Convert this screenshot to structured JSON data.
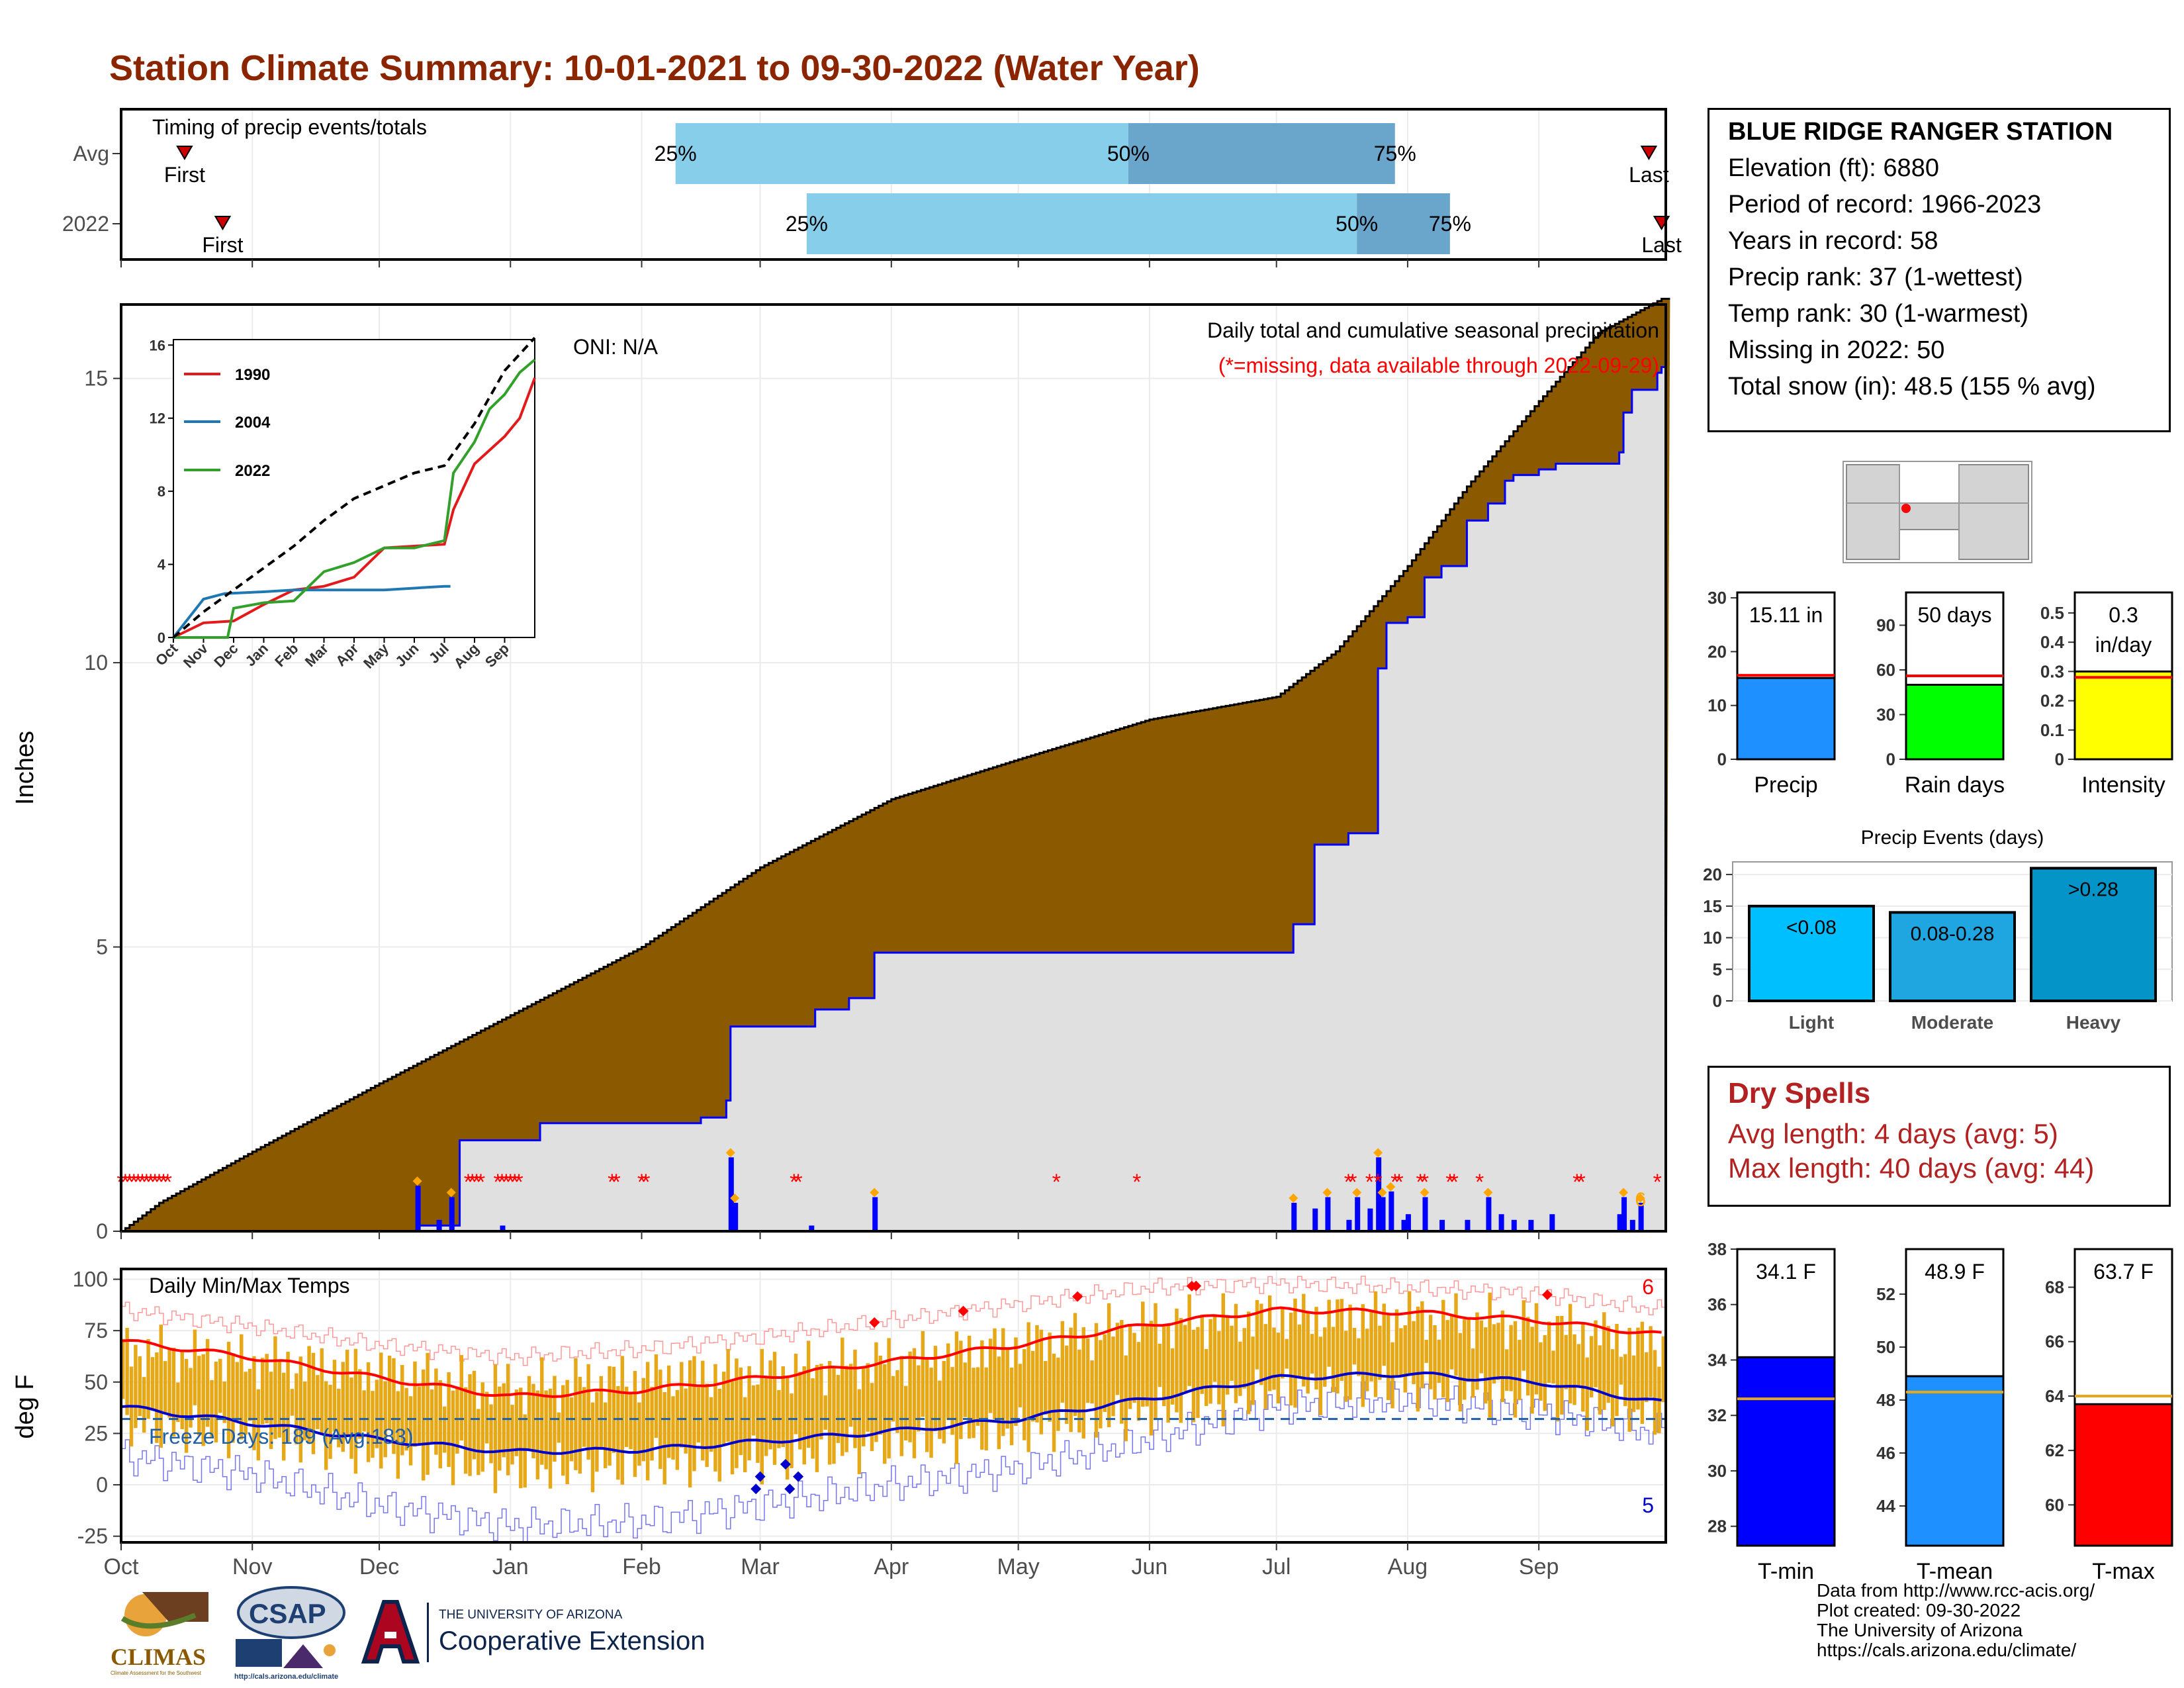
{
  "title": "Station Climate Summary: 10-01-2021 to 09-30-2022 (Water Year)",
  "colors": {
    "title": "#8b2500",
    "cum_fill": "#8b5a00",
    "precip_bar": "#0000ff",
    "timing_light": "#87ceeb",
    "timing_dark": "#6aa5cc",
    "temp_band": "#e6a817",
    "tmax_line": "#ff0000",
    "tmin_line": "#0000cc",
    "missing": "#ff0000",
    "freeze": "#1f5fa8"
  },
  "timing": {
    "title": "Timing of precip events/totals",
    "rows": [
      "Avg",
      "2022"
    ],
    "labels": {
      "first": "First",
      "last": "Last",
      "p25": "25%",
      "p50": "50%",
      "p75": "75%"
    },
    "avg": {
      "first": "2021-10-16",
      "p25": "2022-02-09",
      "p50": "2022-05-27",
      "p75": "2022-07-29",
      "last": "2022-09-27"
    },
    "y2022": {
      "first": "2021-10-25",
      "p25": "2022-03-12",
      "p50": "2022-07-20",
      "p75": "2022-08-11",
      "last": "2022-09-30"
    }
  },
  "chart_data": [
    {
      "type": "area",
      "name": "daily_and_cumulative_precip",
      "title": "Daily total and cumulative seasonal precipitation",
      "subtitle": "(*=missing, data available through 2022-09-29)",
      "oni": "ONI: N/A",
      "ylabel": "Inches",
      "ylim": [
        0,
        16.3
      ],
      "yticks": [
        0,
        5,
        10,
        15
      ],
      "xticks": [
        "Oct",
        "Nov",
        "Dec",
        "Jan",
        "Feb",
        "Mar",
        "Apr",
        "May",
        "Jun",
        "Jul",
        "Aug",
        "Sep"
      ],
      "avg_cumulative": {
        "dates": [
          "2021-10-01",
          "2021-10-10",
          "2021-11-01",
          "2021-12-01",
          "2022-01-01",
          "2022-02-01",
          "2022-03-01",
          "2022-04-01",
          "2022-05-01",
          "2022-06-01",
          "2022-07-01",
          "2022-07-15",
          "2022-08-01",
          "2022-08-15",
          "2022-09-01",
          "2022-09-15",
          "2022-09-30"
        ],
        "values": [
          0,
          0.5,
          1.4,
          2.6,
          3.8,
          5.0,
          6.4,
          7.6,
          8.3,
          9.0,
          9.4,
          10.2,
          11.7,
          13.1,
          14.6,
          15.8,
          16.4
        ]
      },
      "obs_cumulative": {
        "dates": [
          "2021-10-01",
          "2021-12-10",
          "2021-12-20",
          "2022-01-08",
          "2022-02-15",
          "2022-02-21",
          "2022-02-22",
          "2022-03-14",
          "2022-03-22",
          "2022-03-28",
          "2022-06-30",
          "2022-07-05",
          "2022-07-10",
          "2022-07-18",
          "2022-07-25",
          "2022-07-27",
          "2022-08-01",
          "2022-08-05",
          "2022-08-09",
          "2022-08-15",
          "2022-08-20",
          "2022-08-24",
          "2022-08-26",
          "2022-09-01",
          "2022-09-05",
          "2022-09-10",
          "2022-09-20",
          "2022-09-21",
          "2022-09-23",
          "2022-09-29",
          "2022-09-30"
        ],
        "values": [
          0,
          0.1,
          1.6,
          1.9,
          2.0,
          2.3,
          3.6,
          3.9,
          4.1,
          4.9,
          4.9,
          5.4,
          6.8,
          7.0,
          9.9,
          10.7,
          10.8,
          11.5,
          11.7,
          12.5,
          12.8,
          13.2,
          13.3,
          13.4,
          13.5,
          13.5,
          13.7,
          14.4,
          14.8,
          15.1,
          15.2
        ]
      },
      "daily_precip": {
        "dates": [
          "2021-12-10",
          "2021-12-15",
          "2021-12-18",
          "2021-12-30",
          "2022-02-22",
          "2022-02-23",
          "2022-03-13",
          "2022-03-28",
          "2022-07-05",
          "2022-07-10",
          "2022-07-13",
          "2022-07-18",
          "2022-07-20",
          "2022-07-23",
          "2022-07-25",
          "2022-07-26",
          "2022-07-28",
          "2022-07-31",
          "2022-08-01",
          "2022-08-05",
          "2022-08-09",
          "2022-08-15",
          "2022-08-20",
          "2022-08-23",
          "2022-08-26",
          "2022-08-30",
          "2022-09-04",
          "2022-09-20",
          "2022-09-21",
          "2022-09-23",
          "2022-09-25"
        ],
        "values": [
          0.8,
          0.2,
          0.6,
          0.1,
          1.3,
          0.5,
          0.1,
          0.6,
          0.5,
          0.4,
          0.6,
          0.2,
          0.6,
          0.4,
          1.3,
          0.6,
          0.7,
          0.2,
          0.3,
          0.6,
          0.2,
          0.2,
          0.6,
          0.3,
          0.2,
          0.2,
          0.3,
          0.3,
          0.6,
          0.2,
          0.5
        ]
      },
      "missing_dates": [
        "2021-10-01",
        "2021-10-02",
        "2021-10-03",
        "2021-10-04",
        "2021-10-05",
        "2021-10-06",
        "2021-10-07",
        "2021-10-08",
        "2021-10-09",
        "2021-10-10",
        "2021-10-11",
        "2021-10-12",
        "2021-12-22",
        "2021-12-23",
        "2021-12-24",
        "2021-12-25",
        "2021-12-29",
        "2021-12-30",
        "2021-12-31",
        "2022-01-01",
        "2022-01-02",
        "2022-01-03",
        "2022-01-25",
        "2022-01-26",
        "2022-02-01",
        "2022-02-02",
        "2022-03-09",
        "2022-03-10",
        "2022-05-10",
        "2022-05-29",
        "2022-07-18",
        "2022-07-19",
        "2022-07-23",
        "2022-07-25",
        "2022-07-29",
        "2022-07-30",
        "2022-08-04",
        "2022-08-05",
        "2022-08-11",
        "2022-08-12",
        "2022-08-18",
        "2022-09-10",
        "2022-09-11",
        "2022-09-29"
      ],
      "last_label": "6"
    },
    {
      "type": "line",
      "name": "daily_temps",
      "title": "Daily Min/Max Temps",
      "ylabel": "deg F",
      "ylim": [
        -28,
        105
      ],
      "yticks": [
        -25,
        0,
        25,
        50,
        75,
        100
      ],
      "xticks": [
        "Oct",
        "Nov",
        "Dec",
        "Jan",
        "Feb",
        "Mar",
        "Apr",
        "May",
        "Jun",
        "Jul",
        "Aug",
        "Sep"
      ],
      "freeze_line": 32,
      "freeze_label": "Freeze Days: 189 (Avg:183)",
      "tmax_avg": {
        "dates": [
          "2021-10-01",
          "2021-11-01",
          "2021-12-01",
          "2022-01-01",
          "2022-02-01",
          "2022-03-01",
          "2022-04-01",
          "2022-05-01",
          "2022-06-01",
          "2022-07-01",
          "2022-08-01",
          "2022-09-01",
          "2022-09-30"
        ],
        "values": [
          70,
          62,
          52,
          43,
          46,
          52,
          60,
          68,
          78,
          85,
          84,
          80,
          73
        ]
      },
      "tmin_avg": {
        "dates": [
          "2021-10-01",
          "2021-11-01",
          "2021-12-01",
          "2022-01-01",
          "2022-02-01",
          "2022-03-01",
          "2022-04-01",
          "2022-05-01",
          "2022-06-01",
          "2022-07-01",
          "2022-08-01",
          "2022-09-01",
          "2022-09-30"
        ],
        "values": [
          38,
          30,
          22,
          16,
          17,
          21,
          26,
          32,
          42,
          52,
          54,
          50,
          40
        ]
      },
      "tmax_record": {
        "dates": [
          "2021-10-01",
          "2021-11-01",
          "2021-12-01",
          "2022-01-01",
          "2022-02-01",
          "2022-03-01",
          "2022-04-01",
          "2022-05-01",
          "2022-06-01",
          "2022-07-01",
          "2022-08-01",
          "2022-09-01",
          "2022-09-30"
        ],
        "values": [
          85,
          77,
          68,
          62,
          66,
          72,
          80,
          88,
          96,
          98,
          96,
          93,
          85
        ]
      },
      "tmin_record": {
        "dates": [
          "2021-10-01",
          "2021-11-01",
          "2021-12-01",
          "2022-01-01",
          "2022-02-01",
          "2022-03-01",
          "2022-04-01",
          "2022-05-01",
          "2022-06-01",
          "2022-07-01",
          "2022-08-01",
          "2022-09-01",
          "2022-09-30"
        ],
        "values": [
          14,
          5,
          -10,
          -20,
          -18,
          -10,
          0,
          8,
          22,
          38,
          42,
          35,
          25
        ]
      },
      "obs_band": {
        "dates": [
          "2021-10-01",
          "2021-11-01",
          "2021-12-01",
          "2022-01-01",
          "2022-02-01",
          "2022-03-01",
          "2022-04-01",
          "2022-05-01",
          "2022-06-01",
          "2022-07-01",
          "2022-08-01",
          "2022-09-01",
          "2022-09-30"
        ],
        "tmax": [
          66,
          60,
          55,
          47,
          52,
          55,
          60,
          68,
          78,
          82,
          82,
          78,
          68
        ],
        "tmin": [
          30,
          23,
          15,
          7,
          10,
          12,
          20,
          26,
          35,
          46,
          48,
          42,
          33
        ]
      },
      "record_max_dates": [
        "2022-03-28",
        "2022-04-18",
        "2022-05-15",
        "2022-06-11",
        "2022-06-12",
        "2022-09-03"
      ],
      "record_min_dates": [
        "2022-02-28",
        "2022-03-01",
        "2022-03-07",
        "2022-03-08",
        "2022-03-10"
      ],
      "n_record_max": "6",
      "n_record_min": "5"
    },
    {
      "type": "line",
      "name": "inset_cumulative_years",
      "yticks": [
        0,
        4,
        8,
        12,
        16
      ],
      "ylim": [
        0,
        16.3
      ],
      "xticks": [
        "Oct",
        "Nov",
        "Dec",
        "Jan",
        "Feb",
        "Mar",
        "Apr",
        "May",
        "Jun",
        "Jul",
        "Aug",
        "Sep"
      ],
      "series": [
        {
          "name": "1990",
          "color": "#e31a1c",
          "months": [
            0,
            1,
            2,
            3,
            4,
            5,
            6,
            7,
            8,
            9,
            9.3,
            10,
            11,
            11.5,
            12
          ],
          "values": [
            0,
            0.8,
            0.9,
            1.8,
            2.6,
            2.8,
            3.3,
            4.9,
            5.0,
            5.1,
            7.0,
            9.5,
            11.0,
            12.0,
            14.2
          ]
        },
        {
          "name": "2004",
          "color": "#1f78b4",
          "months": [
            0,
            1,
            1.7,
            3,
            4,
            5,
            6,
            7,
            8,
            9,
            9.2
          ],
          "values": [
            0,
            2.1,
            2.4,
            2.5,
            2.6,
            2.6,
            2.6,
            2.6,
            2.7,
            2.8,
            2.8
          ]
        },
        {
          "name": "2022",
          "color": "#33a02c",
          "months": [
            0,
            1.8,
            2,
            3,
            4,
            5,
            6,
            7,
            8,
            9,
            9.3,
            10,
            10.5,
            11,
            11.5,
            12
          ],
          "values": [
            0,
            0,
            1.6,
            1.9,
            2.0,
            3.6,
            4.1,
            4.9,
            4.9,
            5.3,
            9.0,
            10.7,
            12.5,
            13.3,
            14.5,
            15.2
          ]
        },
        {
          "name": "avg",
          "color": "#000000",
          "months": [
            0,
            1,
            2,
            3,
            4,
            5,
            6,
            7,
            8,
            9,
            10,
            11,
            12
          ],
          "values": [
            0,
            1.4,
            2.6,
            3.8,
            5.0,
            6.4,
            7.6,
            8.3,
            9.0,
            9.4,
            11.7,
            14.6,
            16.4
          ]
        }
      ]
    },
    {
      "type": "bar",
      "name": "precip_total",
      "categories": [
        "Precip"
      ],
      "values": [
        15.11
      ],
      "avg": 15.6,
      "ylim": [
        0,
        31
      ],
      "yticks": [
        0,
        10,
        20,
        30
      ],
      "label": "15.11 in",
      "color": "#1e90ff"
    },
    {
      "type": "bar",
      "name": "rain_days",
      "categories": [
        "Rain days"
      ],
      "values": [
        50
      ],
      "avg": 56,
      "ylim": [
        0,
        112
      ],
      "yticks": [
        0,
        30,
        60,
        90
      ],
      "label": "50 days",
      "color": "#00ff00"
    },
    {
      "type": "bar",
      "name": "intensity",
      "categories": [
        "Intensity"
      ],
      "values": [
        0.3
      ],
      "avg": 0.28,
      "ylim": [
        0,
        0.57
      ],
      "yticks": [
        0,
        0.1,
        0.2,
        0.3,
        0.4,
        0.5
      ],
      "label": "0.3 in/day",
      "color": "#ffff00"
    },
    {
      "type": "bar",
      "name": "precip_events",
      "title": "Precip Events (days)",
      "categories": [
        "Light",
        "Moderate",
        "Heavy"
      ],
      "values": [
        15,
        14,
        21
      ],
      "labels": [
        "<0.08",
        "0.08-0.28",
        ">0.28"
      ],
      "colors": [
        "#00bfff",
        "#1fa5e0",
        "#0494c7"
      ],
      "ylim": [
        0,
        22
      ],
      "yticks": [
        0,
        5,
        10,
        15,
        20
      ]
    },
    {
      "type": "bar",
      "name": "tmin_summary",
      "categories": [
        "T-min"
      ],
      "values": [
        34.1
      ],
      "avg": 32.6,
      "ylim": [
        27.3,
        38
      ],
      "yticks": [
        28,
        30,
        32,
        34,
        36,
        38
      ],
      "label": "34.1 F",
      "color": "#0000ff"
    },
    {
      "type": "bar",
      "name": "tmean_summary",
      "categories": [
        "T-mean"
      ],
      "values": [
        48.9
      ],
      "avg": 48.3,
      "ylim": [
        42.5,
        53.7
      ],
      "yticks": [
        44,
        46,
        48,
        50,
        52
      ],
      "label": "48.9 F",
      "color": "#1e90ff"
    },
    {
      "type": "bar",
      "name": "tmax_summary",
      "categories": [
        "T-max"
      ],
      "values": [
        63.7
      ],
      "avg": 64.0,
      "ylim": [
        58.5,
        69.4
      ],
      "yticks": [
        60,
        62,
        64,
        66,
        68
      ],
      "label": "63.7 F",
      "color": "#ff0000"
    }
  ],
  "station": {
    "name": "BLUE RIDGE RANGER STATION",
    "elevation": "Elevation (ft): 6880",
    "period": "Period of record: 1966-2023",
    "years": "Years in record: 58",
    "precip_rank": "Precip rank: 37 (1-wettest)",
    "temp_rank": "Temp rank: 30 (1-warmest)",
    "missing": "Missing in 2022: 50",
    "snow": "Total snow (in): 48.5 (155 % avg)"
  },
  "dry_spells": {
    "title": "Dry Spells",
    "avg_length": "Avg length: 4 days (avg: 5)",
    "max_length": "Max length: 40 days (avg: 44)"
  },
  "credits": {
    "line1": "Data from http://www.rcc-acis.org/",
    "line2": "Plot created: 09-30-2022",
    "line3": "The University of Arizona",
    "line4": "https://cals.arizona.edu/climate/"
  },
  "logos": {
    "climas": "CLIMAS",
    "climas_sub": "Climate Assessment for the Southwest",
    "csap": "CSAP",
    "csap_url": "http://cals.arizona.edu/climate",
    "ua_top": "THE UNIVERSITY OF ARIZONA",
    "ua_bottom": "Cooperative Extension"
  }
}
